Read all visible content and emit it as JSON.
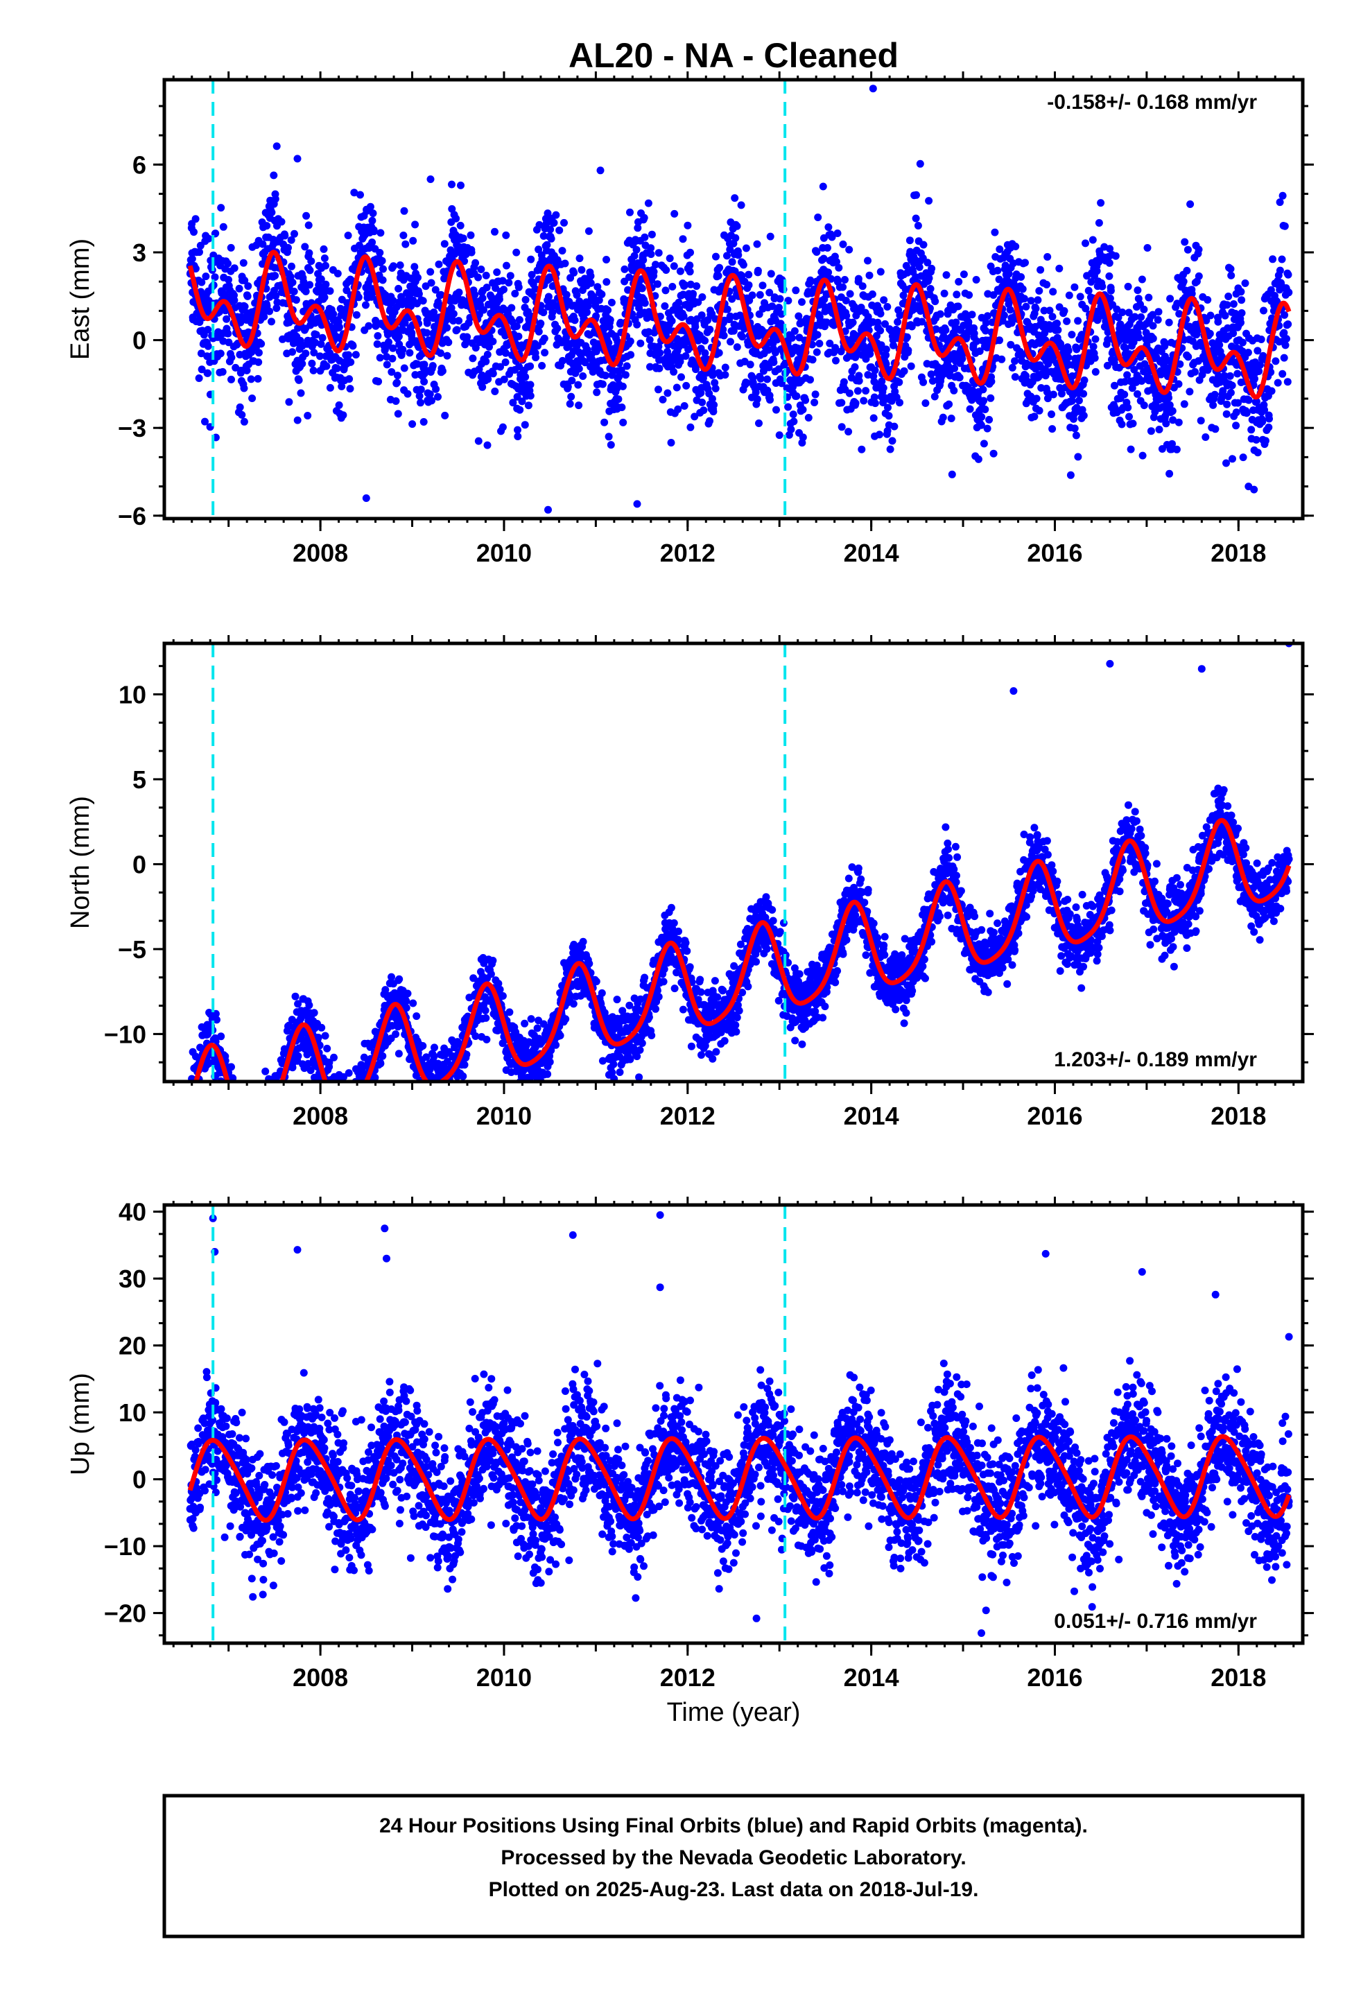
{
  "title": "AL20  - NA - Cleaned",
  "colors": {
    "points": "#0000ff",
    "fit": "#ff0000",
    "breaks": "#00e5ee",
    "frame": "#000000"
  },
  "xlabel": "Time (year)",
  "caption_lines": [
    "24 Hour Positions Using Final Orbits (blue) and Rapid Orbits (magenta).",
    "Processed by the Nevada Geodetic Laboratory.",
    "Plotted on 2025-Aug-23. Last data on 2018-Jul-19."
  ],
  "chart_data": [
    {
      "type": "scatter",
      "name": "east",
      "ylabel": "East (mm)",
      "rate_label": "-0.158+/- 0.168 mm/yr",
      "rate_position": "top-right",
      "xlim": [
        2006.3,
        2018.7
      ],
      "ylim": [
        -6.1,
        8.9
      ],
      "x_ticks": [
        2008,
        2010,
        2012,
        2014,
        2016,
        2018
      ],
      "y_ticks": [
        -6,
        -3,
        0,
        3,
        6
      ],
      "breaks": [
        2006.83,
        2013.06
      ],
      "data_span": [
        2006.58,
        2018.55
      ],
      "model": {
        "offset": 0.4,
        "rate": -0.158,
        "annual_amp": 1.0,
        "annual_phase": 0.3,
        "semi_amp": 0.9,
        "semi_phase": 0.85,
        "scatter_sd": 1.25
      },
      "notable_points": [
        [
          2007.75,
          6.2
        ],
        [
          2014.02,
          8.6
        ],
        [
          2009.2,
          5.5
        ],
        [
          2011.05,
          5.8
        ],
        [
          2010.48,
          -5.8
        ],
        [
          2011.45,
          -5.6
        ],
        [
          2008.5,
          -5.4
        ]
      ]
    },
    {
      "type": "scatter",
      "name": "north",
      "ylabel": "North (mm)",
      "rate_label": "1.203+/- 0.189 mm/yr",
      "rate_position": "bottom-right",
      "xlim": [
        2006.3,
        2018.7
      ],
      "ylim": [
        -12.8,
        13.0
      ],
      "x_ticks": [
        2008,
        2010,
        2012,
        2014,
        2016,
        2018
      ],
      "y_ticks": [
        -10,
        -5,
        0,
        5,
        10
      ],
      "breaks": [
        2006.83,
        2013.06
      ],
      "data_span": [
        2006.58,
        2018.55
      ],
      "model": {
        "offset": -6.9,
        "rate": 1.203,
        "annual_amp": 2.6,
        "annual_phase": 0.55,
        "semi_amp": 0.5,
        "semi_phase": 0.2,
        "scatter_sd": 0.95
      },
      "notable_points": [
        [
          2006.85,
          -12.5
        ],
        [
          2007.4,
          -12.2
        ],
        [
          2018.55,
          13.0
        ],
        [
          2016.6,
          11.8
        ],
        [
          2017.6,
          11.5
        ],
        [
          2015.55,
          10.2
        ]
      ]
    },
    {
      "type": "scatter",
      "name": "up",
      "ylabel": "Up (mm)",
      "rate_label": "0.051+/- 0.716 mm/yr",
      "rate_position": "bottom-right",
      "xlim": [
        2006.3,
        2018.7
      ],
      "ylim": [
        -24.5,
        41.0
      ],
      "x_ticks": [
        2008,
        2010,
        2012,
        2014,
        2016,
        2018
      ],
      "y_ticks": [
        -20,
        -10,
        0,
        10,
        20,
        30,
        40
      ],
      "breaks": [
        2006.83,
        2013.06
      ],
      "data_span": [
        2006.58,
        2018.55
      ],
      "model": {
        "offset": 0.3,
        "rate": 0.051,
        "annual_amp": 5.8,
        "annual_phase": 0.62,
        "semi_amp": 0.8,
        "semi_phase": 0.1,
        "scatter_sd": 4.5
      },
      "notable_points": [
        [
          2006.83,
          39.0
        ],
        [
          2006.85,
          34.0
        ],
        [
          2007.75,
          34.3
        ],
        [
          2008.7,
          37.5
        ],
        [
          2008.72,
          33.0
        ],
        [
          2010.75,
          36.5
        ],
        [
          2011.7,
          39.5
        ],
        [
          2011.7,
          28.7
        ],
        [
          2015.9,
          33.7
        ],
        [
          2016.95,
          31.0
        ],
        [
          2017.75,
          27.6
        ],
        [
          2018.55,
          21.3
        ],
        [
          2012.75,
          -20.8
        ],
        [
          2015.2,
          -23.0
        ],
        [
          2015.25,
          -19.6
        ]
      ]
    }
  ]
}
